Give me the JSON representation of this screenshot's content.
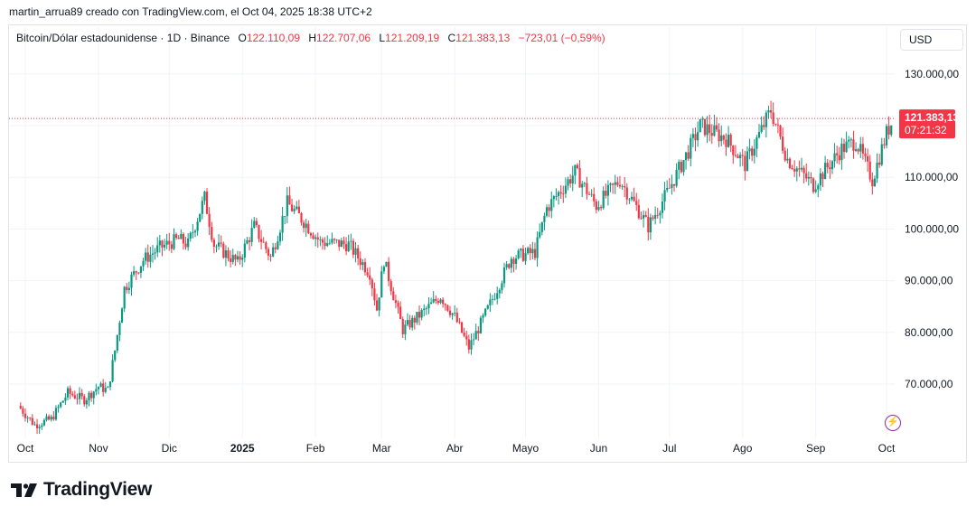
{
  "header": {
    "caption": "martin_arrua89 creado con TradingView.com, el Oct 04, 2025 18:38 UTC+2"
  },
  "legend": {
    "symbol": "Bitcoin/Dólar estadounidense · 1D · Binance",
    "o_label": "O",
    "o_value": "122.110,09",
    "h_label": "H",
    "h_value": "122.707,06",
    "l_label": "L",
    "l_value": "121.209,19",
    "c_label": "C",
    "c_value": "121.383,13",
    "change": "−723,01 (−0,59%)"
  },
  "currency_button": "USD",
  "brand": "TradingView",
  "colors": {
    "up": "#089981",
    "down": "#f23645",
    "grid": "#f0f3fa",
    "text": "#131722",
    "last_price": "#f23645",
    "tool_icon": "#9c27b0"
  },
  "icons": {
    "logo": "tradingview-logo-icon",
    "tool": "lightning-icon"
  },
  "chart_data": {
    "type": "candlestick",
    "title": "Bitcoin/Dólar estadounidense · 1D · Binance",
    "interval": "1D",
    "y_axis": {
      "ticks": [
        70000,
        80000,
        90000,
        100000,
        110000,
        120000,
        130000
      ],
      "tick_labels": [
        "70.000,00",
        "80.000,00",
        "90.000,00",
        "100.000,00",
        "110.000,00",
        "",
        "130.000,00"
      ]
    },
    "x_axis": {
      "ticks": [
        {
          "date": "2024-10-01",
          "label": "Oct"
        },
        {
          "date": "2024-11-01",
          "label": "Nov"
        },
        {
          "date": "2024-12-01",
          "label": "Dic"
        },
        {
          "date": "2025-01-01",
          "label": "2025"
        },
        {
          "date": "2025-02-01",
          "label": "Feb"
        },
        {
          "date": "2025-03-01",
          "label": "Mar"
        },
        {
          "date": "2025-04-01",
          "label": "Abr"
        },
        {
          "date": "2025-05-01",
          "label": "Mayo"
        },
        {
          "date": "2025-06-01",
          "label": "Jun"
        },
        {
          "date": "2025-07-01",
          "label": "Jul"
        },
        {
          "date": "2025-08-01",
          "label": "Ago"
        },
        {
          "date": "2025-09-01",
          "label": "Sep"
        },
        {
          "date": "2025-10-01",
          "label": "Oct"
        }
      ]
    },
    "last_price": {
      "value": 121383.13,
      "label": "121.383,13",
      "countdown": "07:21:32"
    },
    "grid": true,
    "series_closes": [
      {
        "date": "2024-09-28",
        "close": 65800
      },
      {
        "date": "2024-10-05",
        "close": 62100
      },
      {
        "date": "2024-10-12",
        "close": 63200
      },
      {
        "date": "2024-10-19",
        "close": 68300
      },
      {
        "date": "2024-10-26",
        "close": 67000
      },
      {
        "date": "2024-11-01",
        "close": 69500
      },
      {
        "date": "2024-11-05",
        "close": 68800
      },
      {
        "date": "2024-11-08",
        "close": 76500
      },
      {
        "date": "2024-11-12",
        "close": 88500
      },
      {
        "date": "2024-11-20",
        "close": 94000
      },
      {
        "date": "2024-11-27",
        "close": 96400
      },
      {
        "date": "2024-12-05",
        "close": 98000
      },
      {
        "date": "2024-12-09",
        "close": 97000
      },
      {
        "date": "2024-12-16",
        "close": 106000
      },
      {
        "date": "2024-12-20",
        "close": 97000
      },
      {
        "date": "2024-12-30",
        "close": 93500
      },
      {
        "date": "2025-01-06",
        "close": 100500
      },
      {
        "date": "2025-01-13",
        "close": 94500
      },
      {
        "date": "2025-01-20",
        "close": 105000
      },
      {
        "date": "2025-01-27",
        "close": 101500
      },
      {
        "date": "2025-02-03",
        "close": 97500
      },
      {
        "date": "2025-02-15",
        "close": 97000
      },
      {
        "date": "2025-02-24",
        "close": 91500
      },
      {
        "date": "2025-02-27",
        "close": 84500
      },
      {
        "date": "2025-03-02",
        "close": 94000
      },
      {
        "date": "2025-03-10",
        "close": 80500
      },
      {
        "date": "2025-03-20",
        "close": 84500
      },
      {
        "date": "2025-03-26",
        "close": 87000
      },
      {
        "date": "2025-04-01",
        "close": 83000
      },
      {
        "date": "2025-04-07",
        "close": 77000
      },
      {
        "date": "2025-04-15",
        "close": 84500
      },
      {
        "date": "2025-04-25",
        "close": 94500
      },
      {
        "date": "2025-05-05",
        "close": 95500
      },
      {
        "date": "2025-05-10",
        "close": 104000
      },
      {
        "date": "2025-05-22",
        "close": 111000
      },
      {
        "date": "2025-05-31",
        "close": 104500
      },
      {
        "date": "2025-06-10",
        "close": 109500
      },
      {
        "date": "2025-06-22",
        "close": 100500
      },
      {
        "date": "2025-06-30",
        "close": 107000
      },
      {
        "date": "2025-07-10",
        "close": 116000
      },
      {
        "date": "2025-07-14",
        "close": 120000
      },
      {
        "date": "2025-07-25",
        "close": 117500
      },
      {
        "date": "2025-08-02",
        "close": 112500
      },
      {
        "date": "2025-08-13",
        "close": 123000
      },
      {
        "date": "2025-08-20",
        "close": 113500
      },
      {
        "date": "2025-08-31",
        "close": 108500
      },
      {
        "date": "2025-09-12",
        "close": 115500
      },
      {
        "date": "2025-09-18",
        "close": 117000
      },
      {
        "date": "2025-09-25",
        "close": 109500
      },
      {
        "date": "2025-10-01",
        "close": 118500
      },
      {
        "date": "2025-10-04",
        "close": 121383.13
      }
    ]
  }
}
